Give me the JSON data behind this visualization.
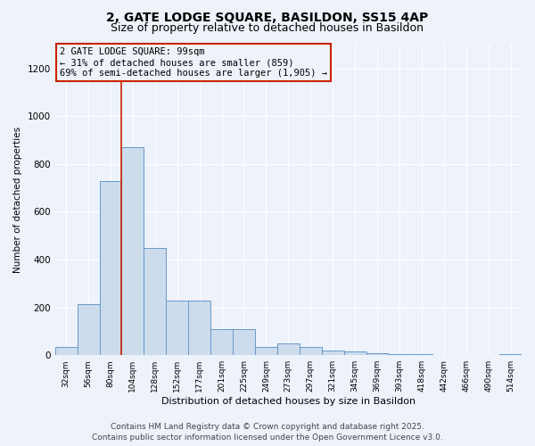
{
  "title1": "2, GATE LODGE SQUARE, BASILDON, SS15 4AP",
  "title2": "Size of property relative to detached houses in Basildon",
  "xlabel": "Distribution of detached houses by size in Basildon",
  "ylabel": "Number of detached properties",
  "categories": [
    "32sqm",
    "56sqm",
    "80sqm",
    "104sqm",
    "128sqm",
    "152sqm",
    "177sqm",
    "201sqm",
    "225sqm",
    "249sqm",
    "273sqm",
    "297sqm",
    "321sqm",
    "345sqm",
    "369sqm",
    "393sqm",
    "418sqm",
    "442sqm",
    "466sqm",
    "490sqm",
    "514sqm"
  ],
  "values": [
    35,
    215,
    730,
    870,
    450,
    230,
    230,
    110,
    110,
    35,
    50,
    35,
    20,
    15,
    10,
    5,
    3,
    2,
    1,
    1,
    5
  ],
  "bar_color": "#cddcec",
  "bar_edge_color": "#6699cc",
  "vline_x": 2.5,
  "vline_color": "#cc2200",
  "annotation_text": "2 GATE LODGE SQUARE: 99sqm\n← 31% of detached houses are smaller (859)\n69% of semi-detached houses are larger (1,905) →",
  "annotation_box_color": "#cc2200",
  "ylim": [
    0,
    1300
  ],
  "yticks": [
    0,
    200,
    400,
    600,
    800,
    1000,
    1200
  ],
  "footer1": "Contains HM Land Registry data © Crown copyright and database right 2025.",
  "footer2": "Contains public sector information licensed under the Open Government Licence v3.0.",
  "bg_color": "#eef2fb",
  "grid_color": "#ffffff",
  "title_fontsize": 10,
  "subtitle_fontsize": 9,
  "annot_fontsize": 7.5,
  "footer_fontsize": 6.5
}
